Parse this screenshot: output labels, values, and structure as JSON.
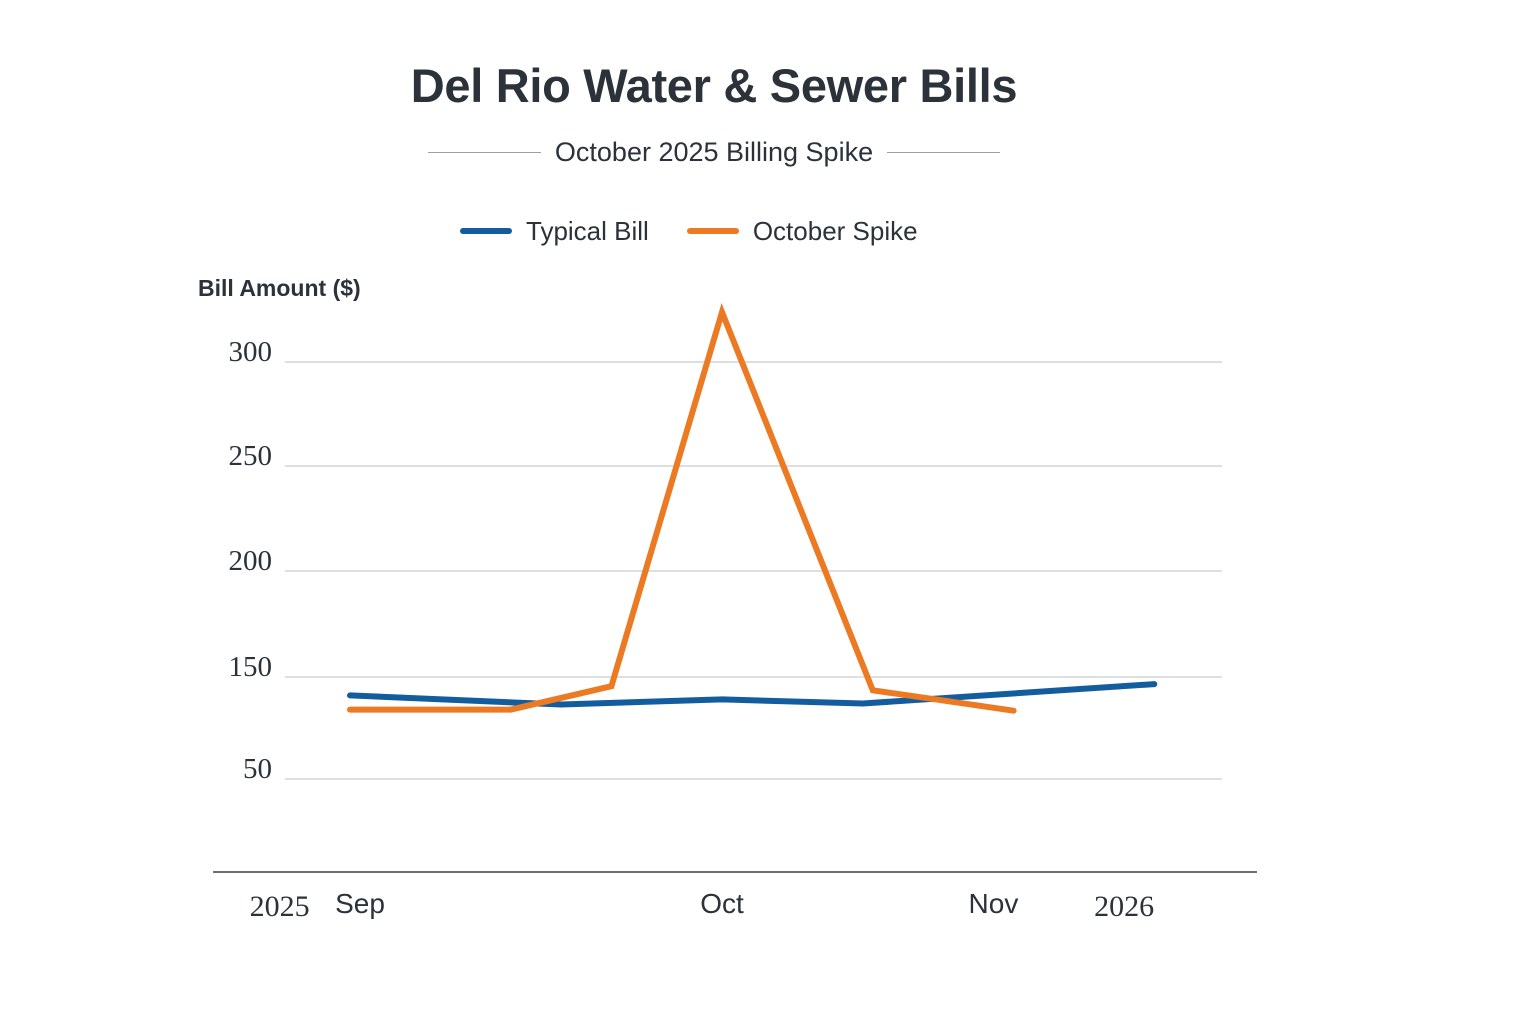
{
  "chart_data": {
    "type": "line",
    "title": "Del Rio Water & Sewer Bills",
    "subtitle": "October 2025 Billing Spike",
    "ylabel": "Bill Amount ($)",
    "xlabel": "",
    "y_ticks": [
      50,
      150,
      200,
      250,
      300
    ],
    "x_tick_labels": [
      {
        "label": "2025",
        "pos": 0.6,
        "style": "year"
      },
      {
        "label": "Sep",
        "pos": 1.4,
        "style": "month"
      },
      {
        "label": "Oct",
        "pos": 5.0,
        "style": "month"
      },
      {
        "label": "Nov",
        "pos": 7.7,
        "style": "month"
      },
      {
        "label": "2026",
        "pos": 9.0,
        "style": "year"
      }
    ],
    "series": [
      {
        "name": "Typical Bill",
        "color": "#135d9e",
        "x": [
          1.3,
          3.4,
          5.0,
          6.4,
          9.3
        ],
        "values": [
          132,
          123,
          128,
          124,
          143
        ]
      },
      {
        "name": "October Spike",
        "color": "#ec7a23",
        "x": [
          1.3,
          2.9,
          3.9,
          5.0,
          6.5,
          7.9
        ],
        "values": [
          118,
          118,
          141,
          324,
          137,
          117
        ]
      }
    ]
  },
  "colors": {
    "typical": "#135d9e",
    "spike": "#ec7a23",
    "grid": "#c9cccf",
    "axis": "#3a3f45",
    "text": "#2b323a"
  }
}
